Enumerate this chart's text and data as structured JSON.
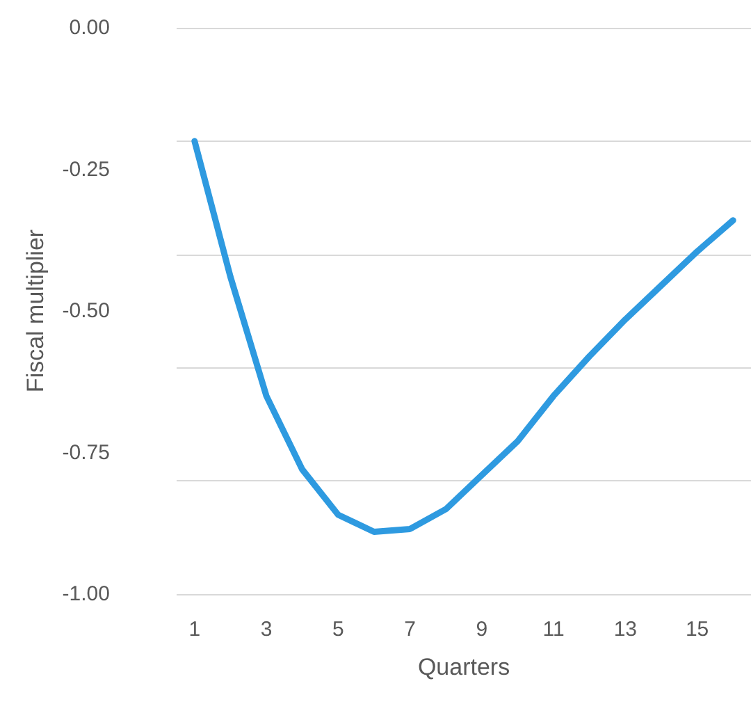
{
  "chart_data": {
    "type": "line",
    "xlabel": "Quarters",
    "ylabel": "Fiscal multiplier",
    "x": [
      1,
      2,
      3,
      4,
      5,
      6,
      7,
      8,
      9,
      10,
      11,
      12,
      13,
      14,
      15,
      16
    ],
    "xlim": [
      0.5,
      16.5
    ],
    "xticks": [
      1,
      3,
      5,
      7,
      9,
      11,
      13,
      15
    ],
    "series": [
      {
        "color": "#2e9ae0",
        "values": [
          -0.2,
          -0.44,
          -0.65,
          -0.78,
          -0.86,
          -0.89,
          -0.885,
          -0.85,
          -0.79,
          -0.73,
          -0.65,
          -0.58,
          -0.515,
          -0.455,
          -0.395,
          -0.34
        ]
      }
    ],
    "ylim": [
      -1,
      0
    ],
    "yticks": [
      {
        "value": -1,
        "label": "-1.00"
      },
      {
        "value": -0.75,
        "label": "-0.75"
      },
      {
        "value": -0.5,
        "label": "-0.50"
      },
      {
        "value": -0.25,
        "label": "-0.25"
      },
      {
        "value": 0,
        "label": "0.00"
      }
    ],
    "grid": "y",
    "marker": "none",
    "line_style": "solid"
  }
}
